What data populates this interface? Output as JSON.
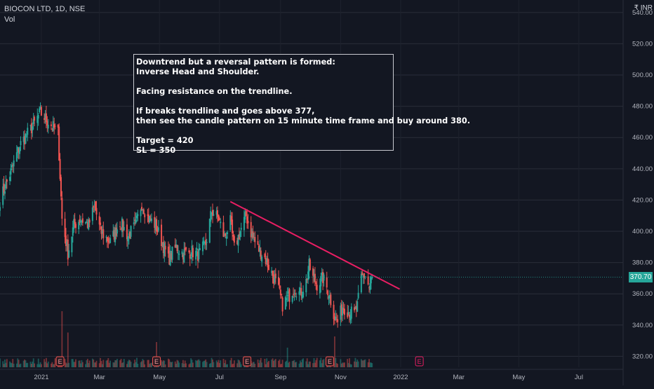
{
  "header": {
    "symbol_line": "BIOCON LTD, 1D, NSE",
    "volume_label": "Vol",
    "currency_label": "₹ INR"
  },
  "colors": {
    "background": "#131722",
    "up": "#26a69a",
    "down": "#ef5350",
    "trendline": "#e91e63",
    "grid": "#2a2e39",
    "axis_text": "#b2b5be",
    "last_price_tag": "#26a69a"
  },
  "annotation": {
    "lines": [
      "Downtrend but a reversal pattern is formed:",
      "Inverse Head and Shoulder.",
      "",
      "Facing resistance on the trendline.",
      "",
      "If breaks trendline and goes above 377,",
      "then see the candle pattern on 15 minute time frame and buy around 380.",
      "",
      "Target = 420",
      "SL = 350"
    ]
  },
  "chart_data": {
    "type": "candlestick",
    "symbol": "BIOCON LTD",
    "timeframe": "1D",
    "exchange": "NSE",
    "y_axis": {
      "range": [
        313,
        548
      ],
      "ticks": [
        320,
        340,
        360,
        380,
        400,
        420,
        440,
        460,
        480,
        500,
        520,
        540
      ],
      "tick_labels": [
        "320.00",
        "340.00",
        "360.00",
        "380.00",
        "400.00",
        "420.00",
        "440.00",
        "460.00",
        "480.00",
        "500.00",
        "520.00",
        "540.00"
      ],
      "side": "right"
    },
    "x_axis": {
      "tick_labels": [
        "2021",
        "Mar",
        "May",
        "Jul",
        "Sep",
        "Nov",
        "2022",
        "Mar",
        "May",
        "Jul"
      ],
      "range": [
        "2020-11-20",
        "2022-08-15"
      ]
    },
    "last_price": 370.7,
    "last_price_label": "370.70",
    "trendline": {
      "points": [
        [
          "2021-07-12",
          419
        ],
        [
          "2021-12-31",
          363
        ]
      ],
      "label": ""
    },
    "earnings_markers": {
      "label": "E",
      "dates": [
        "2021-01-20",
        "2021-04-28",
        "2021-07-29",
        "2021-10-21",
        "2022-01-20"
      ],
      "future": [
        false,
        false,
        false,
        false,
        true
      ]
    },
    "price_anchors": [
      [
        "2020-11-20",
        420
      ],
      [
        "2020-12-01",
        438
      ],
      [
        "2020-12-10",
        455
      ],
      [
        "2020-12-24",
        468
      ],
      [
        "2020-12-31",
        476
      ],
      [
        "2021-01-05",
        472
      ],
      [
        "2021-01-11",
        468
      ],
      [
        "2021-01-18",
        463
      ],
      [
        "2021-01-22",
        408
      ],
      [
        "2021-01-28",
        386
      ],
      [
        "2021-02-03",
        404
      ],
      [
        "2021-02-10",
        408
      ],
      [
        "2021-02-18",
        404
      ],
      [
        "2021-02-24",
        416
      ],
      [
        "2021-03-02",
        400
      ],
      [
        "2021-03-12",
        393
      ],
      [
        "2021-03-22",
        406
      ],
      [
        "2021-03-30",
        397
      ],
      [
        "2021-04-07",
        404
      ],
      [
        "2021-04-13",
        418
      ],
      [
        "2021-04-19",
        409
      ],
      [
        "2021-04-27",
        404
      ],
      [
        "2021-05-03",
        394
      ],
      [
        "2021-05-10",
        382
      ],
      [
        "2021-05-18",
        390
      ],
      [
        "2021-05-25",
        386
      ],
      [
        "2021-06-03",
        387
      ],
      [
        "2021-06-10",
        385
      ],
      [
        "2021-06-17",
        392
      ],
      [
        "2021-06-23",
        413
      ],
      [
        "2021-06-30",
        408
      ],
      [
        "2021-07-06",
        396
      ],
      [
        "2021-07-12",
        406
      ],
      [
        "2021-07-16",
        389
      ],
      [
        "2021-07-22",
        400
      ],
      [
        "2021-07-28",
        410
      ],
      [
        "2021-08-03",
        397
      ],
      [
        "2021-08-09",
        389
      ],
      [
        "2021-08-16",
        383
      ],
      [
        "2021-08-24",
        372
      ],
      [
        "2021-08-30",
        362
      ],
      [
        "2021-09-03",
        353
      ],
      [
        "2021-09-09",
        358
      ],
      [
        "2021-09-15",
        364
      ],
      [
        "2021-09-21",
        360
      ],
      [
        "2021-09-27",
        368
      ],
      [
        "2021-09-30",
        378
      ],
      [
        "2021-10-04",
        370
      ],
      [
        "2021-10-08",
        366
      ],
      [
        "2021-10-14",
        370
      ],
      [
        "2021-10-20",
        361
      ],
      [
        "2021-10-26",
        345
      ],
      [
        "2021-10-29",
        342
      ],
      [
        "2021-11-03",
        352
      ],
      [
        "2021-11-09",
        349
      ],
      [
        "2021-11-15",
        347
      ],
      [
        "2021-11-18",
        352
      ],
      [
        "2021-11-22",
        370
      ],
      [
        "2021-11-26",
        372
      ],
      [
        "2021-11-30",
        364
      ],
      [
        "2021-12-03",
        370.7
      ]
    ],
    "volume": {
      "label": "Vol",
      "spikes": [
        [
          "2021-01-22",
          1.0
        ],
        [
          "2021-01-28",
          0.62
        ],
        [
          "2021-04-28",
          0.45
        ],
        [
          "2021-09-08",
          0.35
        ],
        [
          "2021-10-26",
          0.55
        ]
      ]
    }
  }
}
